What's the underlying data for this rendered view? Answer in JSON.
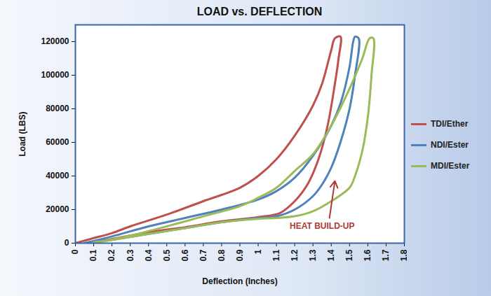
{
  "chart_data": {
    "type": "line",
    "title": "LOAD vs. DEFLECTION",
    "x_label": "Deflection (Inches)",
    "y_label": "Load (LBS)",
    "xlim": [
      0,
      1.8
    ],
    "xticks": [
      0,
      0.1,
      0.2,
      0.3,
      0.4,
      0.5,
      0.6,
      0.7,
      0.8,
      0.9,
      1,
      1.1,
      1.2,
      1.3,
      1.4,
      1.5,
      1.6,
      1.7,
      1.8
    ],
    "ylim": [
      0,
      130000
    ],
    "yticks": [
      0,
      20000,
      40000,
      60000,
      80000,
      100000,
      120000
    ],
    "grid": false,
    "legend": "right",
    "series": [
      {
        "name": "TDI/Ether",
        "color": "#c0504d",
        "x": [
          0,
          0.1,
          0.2,
          0.3,
          0.5,
          0.7,
          0.9,
          1.0,
          1.1,
          1.2,
          1.3,
          1.35,
          1.4,
          1.42,
          1.45,
          1.44,
          1.42,
          1.38,
          1.33,
          1.27,
          1.2,
          1.12,
          1.0,
          0.8,
          0.6,
          0.4,
          0.2,
          0.1
        ],
        "values": [
          0,
          3000,
          6000,
          10000,
          17000,
          25000,
          33000,
          40000,
          50000,
          64000,
          82000,
          95000,
          115000,
          122000,
          123000,
          110000,
          95000,
          70000,
          50000,
          35000,
          25000,
          18000,
          15500,
          13000,
          9500,
          6500,
          2500,
          500
        ]
      },
      {
        "name": "NDI/Ester",
        "color": "#4f81bd",
        "x": [
          0.05,
          0.2,
          0.4,
          0.6,
          0.8,
          1.0,
          1.1,
          1.2,
          1.3,
          1.4,
          1.45,
          1.5,
          1.52,
          1.53,
          1.55,
          1.53,
          1.5,
          1.45,
          1.4,
          1.35,
          1.3,
          1.2,
          1.1,
          1.0,
          0.8,
          0.6,
          0.4,
          0.2,
          0.1
        ],
        "values": [
          0,
          4000,
          10000,
          15000,
          20000,
          26000,
          31000,
          39000,
          52000,
          70000,
          83000,
          105000,
          120000,
          123000,
          122000,
          100000,
          80000,
          60000,
          45000,
          35000,
          28000,
          20000,
          16000,
          15000,
          12500,
          9000,
          5500,
          2000,
          500
        ]
      },
      {
        "name": "MDI/Ester",
        "color": "#9bbb59",
        "x": [
          0.1,
          0.3,
          0.5,
          0.7,
          0.9,
          1.0,
          1.1,
          1.2,
          1.3,
          1.4,
          1.5,
          1.57,
          1.61,
          1.63,
          1.62,
          1.6,
          1.57,
          1.53,
          1.5,
          1.4,
          1.3,
          1.2,
          1.1,
          1.0,
          0.8,
          0.6,
          0.4,
          0.2,
          0.1
        ],
        "values": [
          0,
          4500,
          10000,
          16000,
          22000,
          27000,
          33000,
          43000,
          53000,
          70000,
          92000,
          110000,
          122000,
          122000,
          100000,
          75000,
          55000,
          40000,
          33000,
          25000,
          19000,
          16000,
          15000,
          14500,
          12500,
          9000,
          5500,
          2000,
          500
        ]
      }
    ],
    "annotations": [
      {
        "text": "HEAT BUILD-UP",
        "x": 1.35,
        "y": 10000,
        "color": "#b03a35",
        "arrow_from": [
          1.39,
          15000
        ],
        "arrow_to": [
          1.42,
          37000
        ]
      }
    ]
  }
}
